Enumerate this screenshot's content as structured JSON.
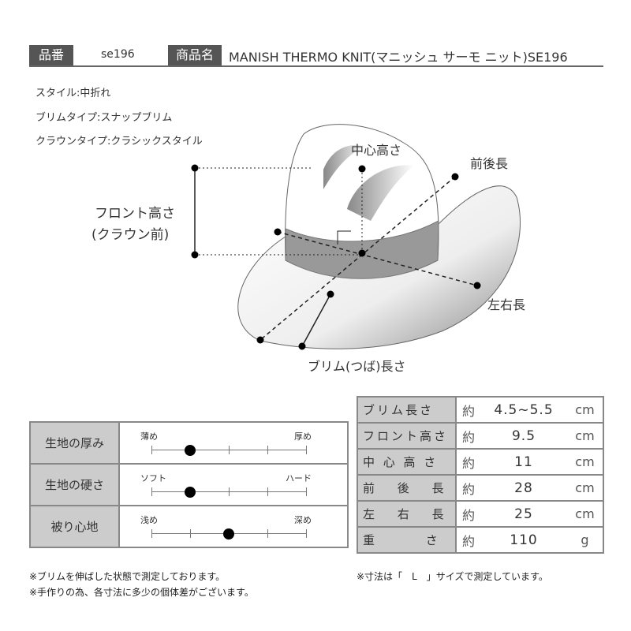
{
  "header": {
    "code_label": "品番",
    "code": "se196",
    "name_label": "商品名",
    "name": "MANISH THERMO KNIT(マニッシュ サーモ ニット)SE196"
  },
  "specs": [
    "スタイル:中折れ",
    "ブリムタイプ:スナップブリム",
    "クラウンタイプ:クラシックスタイル"
  ],
  "diagram": {
    "center_height": "中心高さ",
    "front_back": "前後長",
    "front_height_1": "フロント高さ",
    "front_height_2": "(クラウン前)",
    "left_right": "左右長",
    "brim": "ブリム(つば)長さ"
  },
  "feel": [
    {
      "label": "生地の厚み",
      "min": "薄め",
      "max": "厚め",
      "level": 0.25
    },
    {
      "label": "生地の硬さ",
      "min": "ソフト",
      "max": "ハード",
      "level": 0.25
    },
    {
      "label": "被り心地",
      "min": "浅め",
      "max": "深め",
      "level": 0.5
    }
  ],
  "sizes": [
    {
      "label": "ブリム長さ",
      "approx": "約",
      "value": "4.5~5.5",
      "unit": "cm"
    },
    {
      "label": "フロント高さ",
      "approx": "約",
      "value": "9.5",
      "unit": "cm"
    },
    {
      "label": "中 心 高 さ",
      "approx": "約",
      "value": "11",
      "unit": "cm"
    },
    {
      "label": "前　 後　 長",
      "approx": "約",
      "value": "28",
      "unit": "cm"
    },
    {
      "label": "左　 右　 長",
      "approx": "約",
      "value": "25",
      "unit": "cm"
    },
    {
      "label": "重　　　 さ",
      "approx": "約",
      "value": "110",
      "unit": "g"
    }
  ],
  "notes_left": [
    "※ブリムを伸ばした状態で測定しております。",
    "※手作りの為、各寸法に多少の個体差がございます。"
  ],
  "note_right": "※寸法は「　L　」サイズで測定しています。"
}
